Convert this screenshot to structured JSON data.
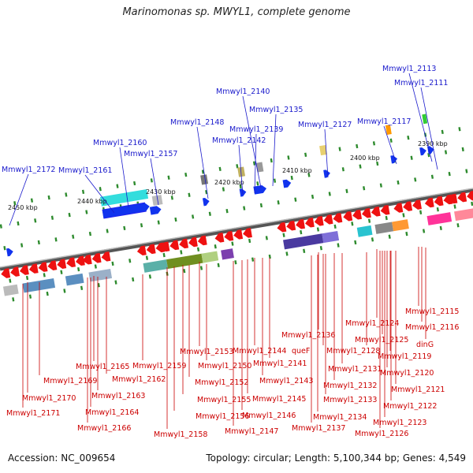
{
  "title": "Marinomonas sp. MWYL1, complete genome",
  "footer": {
    "accession": "Accession: NC_009654",
    "topology": "Topology: circular; Length: 5,100,344 bp; Genes: 4,549"
  },
  "axis_ticks": [
    "2450 kbp",
    "2440 kbp",
    "2430 kbp",
    "2420 kbp",
    "2410 kbp",
    "2400 kbp",
    "2390 kbp"
  ],
  "forward_labels": [
    "Mmwyl1_2113",
    "Mmwyl1_2111",
    "Mmwyl1_2140",
    "Mmwyl1_2135",
    "Mmwyl1_2148",
    "Mmwyl1_2139",
    "Mmwyl1_2127",
    "Mmwyl1_2117",
    "Mmwyl1_2142",
    "Mmwyl1_2160",
    "Mmwyl1_2157",
    "Mmwyl1_2172",
    "Mmwyl1_2161"
  ],
  "reverse_labels": [
    "Mmwyl1_2115",
    "Mmwyl1_2116",
    "dinG",
    "Mmwyl1_2124",
    "Mmwyl1_2125",
    "Mmwyl1_2136",
    "Mmwyl1_2128",
    "Mmwyl1_2119",
    "Mmwyl1_2153",
    "Mmwyl1_2144",
    "queF",
    "Mmwyl1_2141",
    "Mmwyl1_2165",
    "Mmwyl1_2159",
    "Mmwyl1_2150",
    "Mmwyl1_2131",
    "Mmwyl1_2120",
    "Mmwyl1_2162",
    "Mmwyl1_2143",
    "Mmwyl1_2169",
    "Mmwyl1_2152",
    "Mmwyl1_2132",
    "Mmwyl1_2121",
    "Mmwyl1_2163",
    "Mmwyl1_2170",
    "Mmwyl1_2155",
    "Mmwyl1_2145",
    "Mmwyl1_2133",
    "Mmwyl1_2122",
    "Mmwyl1_2164",
    "Mmwyl1_2171",
    "Mmwyl1_2156",
    "Mmwyl1_2146",
    "Mmwyl1_2134",
    "Mmwyl1_2123",
    "Mmwyl1_2166",
    "Mmwyl1_2137",
    "Mmwyl1_2147",
    "Mmwyl1_2126",
    "Mmwyl1_2158"
  ]
}
